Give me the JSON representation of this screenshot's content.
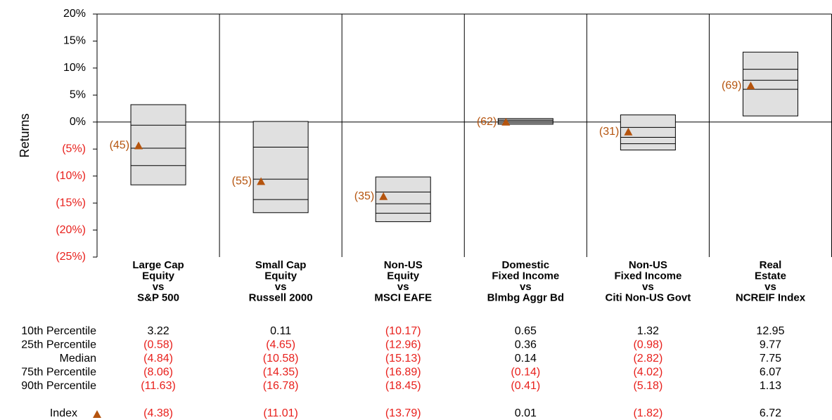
{
  "chart_data": {
    "type": "percentile_box",
    "ylabel": "Returns",
    "ylim": [
      -25,
      20
    ],
    "yticks": [
      {
        "value": 20,
        "label": "20%"
      },
      {
        "value": 15,
        "label": "15%"
      },
      {
        "value": 10,
        "label": "10%"
      },
      {
        "value": 5,
        "label": "5%"
      },
      {
        "value": 0,
        "label": "0%"
      },
      {
        "value": -5,
        "label": "(5%)"
      },
      {
        "value": -10,
        "label": "(10%)"
      },
      {
        "value": -15,
        "label": "(15%)"
      },
      {
        "value": -20,
        "label": "(20%)"
      },
      {
        "value": -25,
        "label": "(25%)"
      }
    ],
    "categories": [
      [
        "Large Cap",
        "Equity",
        "vs",
        "S&P 500"
      ],
      [
        "Small Cap",
        "Equity",
        "vs",
        "Russell 2000"
      ],
      [
        "Non-US",
        "Equity",
        "vs",
        "MSCI EAFE"
      ],
      [
        "Domestic",
        "Fixed Income",
        "vs",
        "Blmbg Aggr Bd"
      ],
      [
        "Non-US",
        "Fixed Income",
        "vs",
        "Citi Non-US Govt"
      ],
      [
        "Real",
        "Estate",
        "vs",
        "NCREIF Index"
      ]
    ],
    "box_color": "#e0e0e0",
    "negative_color": "#e8201c",
    "series": [
      {
        "name": "10th Percentile",
        "values": [
          3.22,
          0.11,
          -10.17,
          0.65,
          1.32,
          12.95
        ],
        "value_labels": [
          "3.22",
          "0.11",
          "(10.17)",
          "0.65",
          "1.32",
          "12.95"
        ]
      },
      {
        "name": "25th Percentile",
        "values": [
          -0.58,
          -4.65,
          -12.96,
          0.36,
          -0.98,
          9.77
        ],
        "value_labels": [
          "(0.58)",
          "(4.65)",
          "(12.96)",
          "0.36",
          "(0.98)",
          "9.77"
        ]
      },
      {
        "name": "Median",
        "values": [
          -4.84,
          -10.58,
          -15.13,
          0.14,
          -2.82,
          7.75
        ],
        "value_labels": [
          "(4.84)",
          "(10.58)",
          "(15.13)",
          "0.14",
          "(2.82)",
          "7.75"
        ]
      },
      {
        "name": "75th Percentile",
        "values": [
          -8.06,
          -14.35,
          -16.89,
          -0.14,
          -4.02,
          6.07
        ],
        "value_labels": [
          "(8.06)",
          "(14.35)",
          "(16.89)",
          "(0.14)",
          "(4.02)",
          "6.07"
        ]
      },
      {
        "name": "90th Percentile",
        "values": [
          -11.63,
          -16.78,
          -18.45,
          -0.41,
          -5.18,
          1.13
        ],
        "value_labels": [
          "(11.63)",
          "(16.78)",
          "(18.45)",
          "(0.41)",
          "(5.18)",
          "1.13"
        ]
      }
    ],
    "index": {
      "name": "Index",
      "color": "#b5540e",
      "values": [
        -4.38,
        -11.01,
        -13.79,
        0.01,
        -1.82,
        6.72
      ],
      "value_labels": [
        "(4.38)",
        "(11.01)",
        "(13.79)",
        "0.01",
        "(1.82)",
        "6.72"
      ],
      "rank_labels": [
        "(45)",
        "(55)",
        "(35)",
        "(62)",
        "(31)",
        "(69)"
      ]
    }
  }
}
